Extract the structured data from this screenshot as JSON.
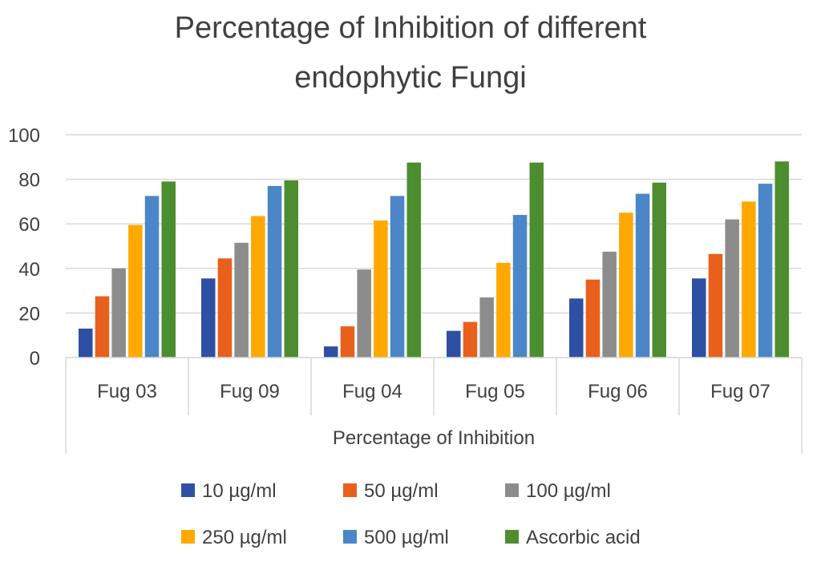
{
  "chart_data": {
    "type": "bar",
    "title_lines": [
      "Percentage of Inhibition of different",
      "endophytic Fungi"
    ],
    "xlabel": "Percentage of Inhibition",
    "ylabel": "",
    "ylim": [
      0,
      100
    ],
    "yticks": [
      0,
      20,
      40,
      60,
      80,
      100
    ],
    "grid": true,
    "legend_position": "bottom",
    "categories": [
      "Fug 03",
      "Fug 09",
      "Fug 04",
      "Fug 05",
      "Fug 06",
      "Fug 07"
    ],
    "series": [
      {
        "name": "10 µg/ml",
        "color": "#2E4FA3",
        "values": [
          13,
          35.5,
          5,
          12,
          26.5,
          35.5
        ]
      },
      {
        "name": "50 µg/ml",
        "color": "#E8601C",
        "values": [
          27.5,
          44.5,
          14,
          16,
          35,
          46.5
        ]
      },
      {
        "name": "100 µg/ml",
        "color": "#8C8C8C",
        "values": [
          40,
          51.5,
          39.5,
          27,
          47.5,
          62
        ]
      },
      {
        "name": "250 µg/ml",
        "color": "#FFA800",
        "values": [
          59.5,
          63.5,
          61.5,
          42.5,
          65,
          70
        ]
      },
      {
        "name": "500 µg/ml",
        "color": "#4A86C8",
        "values": [
          72.5,
          77,
          72.5,
          64,
          73.5,
          78
        ]
      },
      {
        "name": "Ascorbic acid",
        "color": "#4C8E2F",
        "values": [
          79,
          79.5,
          87.5,
          87.5,
          78.5,
          88
        ]
      }
    ]
  }
}
